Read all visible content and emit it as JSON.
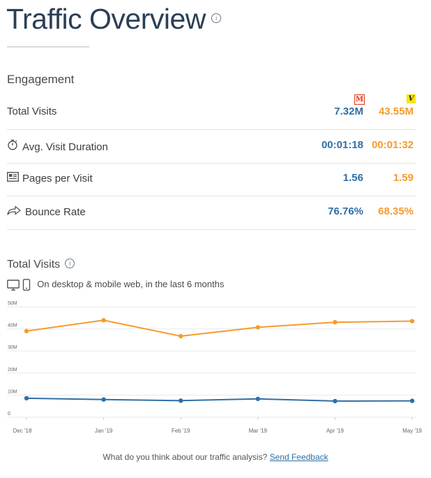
{
  "header": {
    "title": "Traffic Overview",
    "info_icon": "info-icon"
  },
  "engagement": {
    "label": "Engagement",
    "sites": [
      {
        "logo_letter": "M",
        "color": "#2f6fa6",
        "logo_color": "#e0402a"
      },
      {
        "logo_letter": "V",
        "color": "#f59b2d",
        "logo_color": "#f7e600"
      }
    ],
    "metrics": [
      {
        "label": "Total Visits",
        "icon": "",
        "a": "7.32M",
        "b": "43.55M"
      },
      {
        "label": "Avg. Visit Duration",
        "icon": "stopwatch-icon",
        "a": "00:01:18",
        "b": "00:01:32"
      },
      {
        "label": "Pages per Visit",
        "icon": "pages-icon",
        "a": "1.56",
        "b": "1.59"
      },
      {
        "label": "Bounce Rate",
        "icon": "bounce-arrow-icon",
        "a": "76.76%",
        "b": "68.35%"
      }
    ]
  },
  "total_visits": {
    "title": "Total Visits",
    "device_text": "On desktop & mobile web, in the last 6 months",
    "device_icons": [
      "desktop-icon",
      "mobile-icon"
    ]
  },
  "chart_data": {
    "type": "line",
    "x": [
      "Dec '18",
      "Jan '19",
      "Feb '19",
      "Mar '19",
      "Apr '19",
      "May '19"
    ],
    "y_ticks": [
      "0",
      "10M",
      "20M",
      "30M",
      "40M",
      "50M"
    ],
    "ylim": [
      0,
      50
    ],
    "grid": true,
    "series": [
      {
        "color": "#f59b2d",
        "values": [
          39,
          43.9,
          36.7,
          40.7,
          43,
          43.5
        ]
      },
      {
        "color": "#2f6fa6",
        "values": [
          8.6,
          8,
          7.5,
          8.3,
          7.3,
          7.4
        ]
      }
    ]
  },
  "footer": {
    "question": "What do you think about our traffic analysis?",
    "link": "Send Feedback"
  }
}
